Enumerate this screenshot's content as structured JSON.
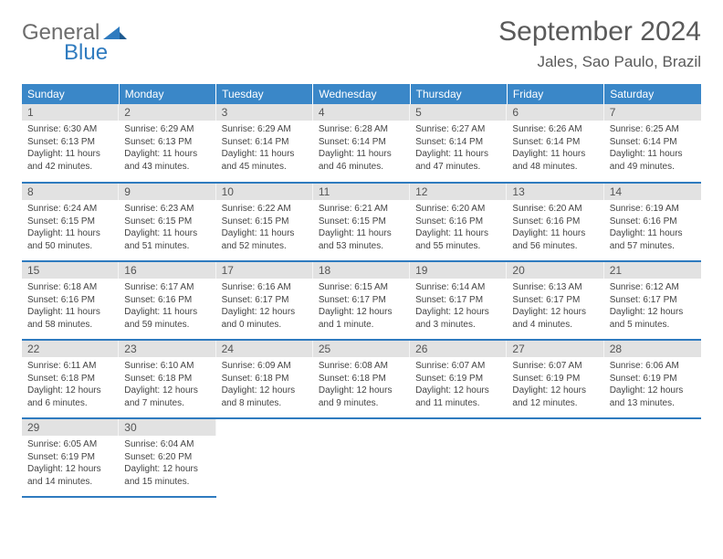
{
  "logo": {
    "word1": "General",
    "word2": "Blue"
  },
  "title": "September 2024",
  "location": "Jales, Sao Paulo, Brazil",
  "colors": {
    "header_bg": "#3a87c8",
    "header_text": "#ffffff",
    "row_border": "#2f7bbf",
    "daynum_bg": "#e2e2e2",
    "logo_gray": "#6c6c6c",
    "logo_blue": "#2f7bbf"
  },
  "weekdays": [
    "Sunday",
    "Monday",
    "Tuesday",
    "Wednesday",
    "Thursday",
    "Friday",
    "Saturday"
  ],
  "startWeekday": 0,
  "daysInMonth": 30,
  "days": {
    "1": {
      "sunrise": "6:30 AM",
      "sunset": "6:13 PM",
      "daylight": "11 hours and 42 minutes."
    },
    "2": {
      "sunrise": "6:29 AM",
      "sunset": "6:13 PM",
      "daylight": "11 hours and 43 minutes."
    },
    "3": {
      "sunrise": "6:29 AM",
      "sunset": "6:14 PM",
      "daylight": "11 hours and 45 minutes."
    },
    "4": {
      "sunrise": "6:28 AM",
      "sunset": "6:14 PM",
      "daylight": "11 hours and 46 minutes."
    },
    "5": {
      "sunrise": "6:27 AM",
      "sunset": "6:14 PM",
      "daylight": "11 hours and 47 minutes."
    },
    "6": {
      "sunrise": "6:26 AM",
      "sunset": "6:14 PM",
      "daylight": "11 hours and 48 minutes."
    },
    "7": {
      "sunrise": "6:25 AM",
      "sunset": "6:14 PM",
      "daylight": "11 hours and 49 minutes."
    },
    "8": {
      "sunrise": "6:24 AM",
      "sunset": "6:15 PM",
      "daylight": "11 hours and 50 minutes."
    },
    "9": {
      "sunrise": "6:23 AM",
      "sunset": "6:15 PM",
      "daylight": "11 hours and 51 minutes."
    },
    "10": {
      "sunrise": "6:22 AM",
      "sunset": "6:15 PM",
      "daylight": "11 hours and 52 minutes."
    },
    "11": {
      "sunrise": "6:21 AM",
      "sunset": "6:15 PM",
      "daylight": "11 hours and 53 minutes."
    },
    "12": {
      "sunrise": "6:20 AM",
      "sunset": "6:16 PM",
      "daylight": "11 hours and 55 minutes."
    },
    "13": {
      "sunrise": "6:20 AM",
      "sunset": "6:16 PM",
      "daylight": "11 hours and 56 minutes."
    },
    "14": {
      "sunrise": "6:19 AM",
      "sunset": "6:16 PM",
      "daylight": "11 hours and 57 minutes."
    },
    "15": {
      "sunrise": "6:18 AM",
      "sunset": "6:16 PM",
      "daylight": "11 hours and 58 minutes."
    },
    "16": {
      "sunrise": "6:17 AM",
      "sunset": "6:16 PM",
      "daylight": "11 hours and 59 minutes."
    },
    "17": {
      "sunrise": "6:16 AM",
      "sunset": "6:17 PM",
      "daylight": "12 hours and 0 minutes."
    },
    "18": {
      "sunrise": "6:15 AM",
      "sunset": "6:17 PM",
      "daylight": "12 hours and 1 minute."
    },
    "19": {
      "sunrise": "6:14 AM",
      "sunset": "6:17 PM",
      "daylight": "12 hours and 3 minutes."
    },
    "20": {
      "sunrise": "6:13 AM",
      "sunset": "6:17 PM",
      "daylight": "12 hours and 4 minutes."
    },
    "21": {
      "sunrise": "6:12 AM",
      "sunset": "6:17 PM",
      "daylight": "12 hours and 5 minutes."
    },
    "22": {
      "sunrise": "6:11 AM",
      "sunset": "6:18 PM",
      "daylight": "12 hours and 6 minutes."
    },
    "23": {
      "sunrise": "6:10 AM",
      "sunset": "6:18 PM",
      "daylight": "12 hours and 7 minutes."
    },
    "24": {
      "sunrise": "6:09 AM",
      "sunset": "6:18 PM",
      "daylight": "12 hours and 8 minutes."
    },
    "25": {
      "sunrise": "6:08 AM",
      "sunset": "6:18 PM",
      "daylight": "12 hours and 9 minutes."
    },
    "26": {
      "sunrise": "6:07 AM",
      "sunset": "6:19 PM",
      "daylight": "12 hours and 11 minutes."
    },
    "27": {
      "sunrise": "6:07 AM",
      "sunset": "6:19 PM",
      "daylight": "12 hours and 12 minutes."
    },
    "28": {
      "sunrise": "6:06 AM",
      "sunset": "6:19 PM",
      "daylight": "12 hours and 13 minutes."
    },
    "29": {
      "sunrise": "6:05 AM",
      "sunset": "6:19 PM",
      "daylight": "12 hours and 14 minutes."
    },
    "30": {
      "sunrise": "6:04 AM",
      "sunset": "6:20 PM",
      "daylight": "12 hours and 15 minutes."
    }
  },
  "labels": {
    "sunrise": "Sunrise:",
    "sunset": "Sunset:",
    "daylight": "Daylight:"
  }
}
